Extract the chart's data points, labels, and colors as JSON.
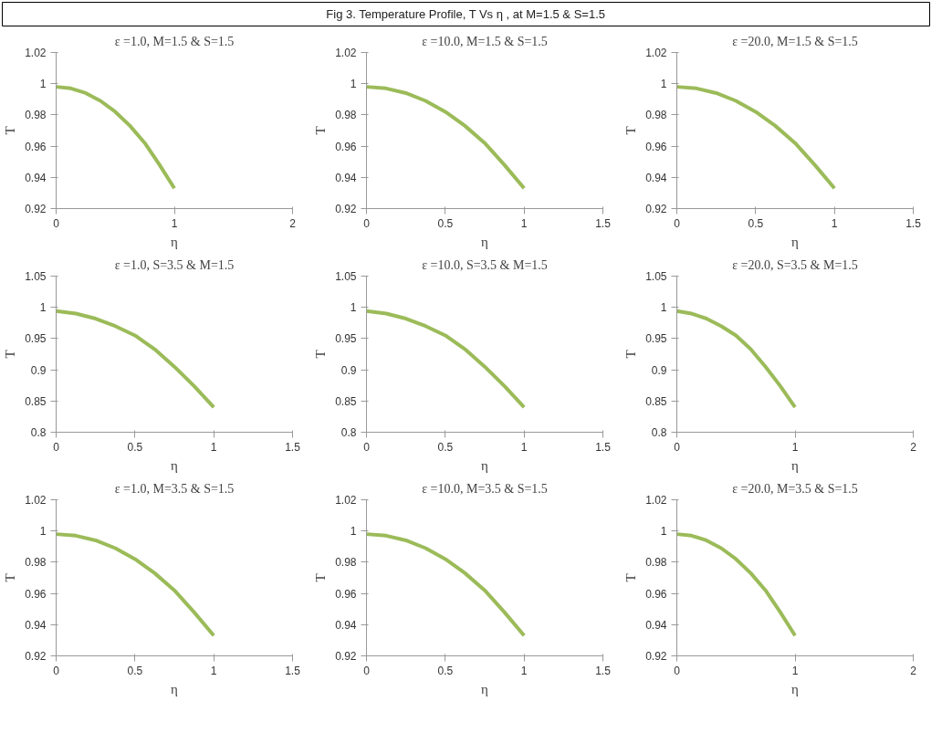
{
  "chart_data": [
    {
      "type": "other",
      "title": "Fig 3. Temperature Profile, T Vs η , at M=1.5 & S=1.5"
    },
    {
      "type": "line",
      "title": "ε =1.0, M=1.5 & S=1.5",
      "xlabel": "η",
      "ylabel": "T",
      "x": [
        0,
        0.125,
        0.25,
        0.375,
        0.5,
        0.625,
        0.75,
        0.875,
        1
      ],
      "series": [
        {
          "color": "#9bbb59",
          "values": [
            0.998,
            0.997,
            0.994,
            0.989,
            0.982,
            0.973,
            0.962,
            0.948,
            0.933
          ]
        }
      ],
      "xlim": [
        0,
        2
      ],
      "xticks": [
        0,
        1,
        2
      ],
      "ylim": [
        0.92,
        1.02
      ],
      "yticks": [
        0.92,
        0.94,
        0.96,
        0.98,
        1,
        1.02
      ],
      "line_style": "solid"
    },
    {
      "type": "line",
      "title": "ε =10.0, M=1.5 & S=1.5",
      "xlabel": "η",
      "ylabel": "T",
      "x": [
        0,
        0.125,
        0.25,
        0.375,
        0.5,
        0.625,
        0.75,
        0.875,
        1
      ],
      "series": [
        {
          "color": "#9bbb59",
          "values": [
            0.998,
            0.997,
            0.994,
            0.989,
            0.982,
            0.973,
            0.962,
            0.948,
            0.933
          ]
        }
      ],
      "xlim": [
        0,
        1.5
      ],
      "xticks": [
        0,
        0.5,
        1,
        1.5
      ],
      "ylim": [
        0.92,
        1.02
      ],
      "yticks": [
        0.92,
        0.94,
        0.96,
        0.98,
        1,
        1.02
      ],
      "line_style": "solid"
    },
    {
      "type": "line",
      "title": "ε =20.0, M=1.5 & S=1.5",
      "xlabel": "η",
      "ylabel": "T",
      "x": [
        0,
        0.125,
        0.25,
        0.375,
        0.5,
        0.625,
        0.75,
        0.875,
        1
      ],
      "series": [
        {
          "color": "#9bbb59",
          "values": [
            0.998,
            0.997,
            0.994,
            0.989,
            0.982,
            0.973,
            0.962,
            0.948,
            0.933
          ]
        }
      ],
      "xlim": [
        0,
        1.5
      ],
      "xticks": [
        0,
        0.5,
        1,
        1.5
      ],
      "ylim": [
        0.92,
        1.02
      ],
      "yticks": [
        0.92,
        0.94,
        0.96,
        0.98,
        1,
        1.02
      ],
      "line_style": "solid"
    },
    {
      "type": "line",
      "title": "ε =1.0, S=3.5 & M=1.5",
      "xlabel": "η",
      "ylabel": "T",
      "x": [
        0,
        0.125,
        0.25,
        0.375,
        0.5,
        0.625,
        0.75,
        0.875,
        1
      ],
      "series": [
        {
          "color": "#9bbb59",
          "values": [
            0.994,
            0.99,
            0.982,
            0.97,
            0.955,
            0.933,
            0.905,
            0.874,
            0.84
          ]
        }
      ],
      "xlim": [
        0,
        1.5
      ],
      "xticks": [
        0,
        0.5,
        1,
        1.5
      ],
      "ylim": [
        0.8,
        1.05
      ],
      "yticks": [
        0.8,
        0.85,
        0.9,
        0.95,
        1,
        1.05
      ],
      "line_style": "solid"
    },
    {
      "type": "line",
      "title": "ε =10.0, S=3.5 & M=1.5",
      "xlabel": "η",
      "ylabel": "T",
      "x": [
        0,
        0.125,
        0.25,
        0.375,
        0.5,
        0.625,
        0.75,
        0.875,
        1
      ],
      "series": [
        {
          "color": "#9bbb59",
          "values": [
            0.994,
            0.99,
            0.982,
            0.97,
            0.955,
            0.933,
            0.905,
            0.874,
            0.84
          ]
        }
      ],
      "xlim": [
        0,
        1.5
      ],
      "xticks": [
        0,
        0.5,
        1,
        1.5
      ],
      "ylim": [
        0.8,
        1.05
      ],
      "yticks": [
        0.8,
        0.85,
        0.9,
        0.95,
        1,
        1.05
      ],
      "line_style": "solid"
    },
    {
      "type": "line",
      "title": "ε =20.0, S=3.5 & M=1.5",
      "xlabel": "η",
      "ylabel": "T",
      "x": [
        0,
        0.125,
        0.25,
        0.375,
        0.5,
        0.625,
        0.75,
        0.875,
        1
      ],
      "series": [
        {
          "color": "#9bbb59",
          "values": [
            0.994,
            0.99,
            0.982,
            0.97,
            0.955,
            0.933,
            0.905,
            0.874,
            0.84
          ]
        }
      ],
      "xlim": [
        0,
        2
      ],
      "xticks": [
        0,
        1,
        2
      ],
      "ylim": [
        0.8,
        1.05
      ],
      "yticks": [
        0.8,
        0.85,
        0.9,
        0.95,
        1,
        1.05
      ],
      "line_style": "solid"
    },
    {
      "type": "line",
      "title": "ε =1.0, M=3.5 & S=1.5",
      "xlabel": "η",
      "ylabel": "T",
      "x": [
        0,
        0.125,
        0.25,
        0.375,
        0.5,
        0.625,
        0.75,
        0.875,
        1
      ],
      "series": [
        {
          "color": "#9bbb59",
          "values": [
            0.998,
            0.997,
            0.994,
            0.989,
            0.982,
            0.973,
            0.962,
            0.948,
            0.933
          ]
        }
      ],
      "xlim": [
        0,
        1.5
      ],
      "xticks": [
        0,
        0.5,
        1,
        1.5
      ],
      "ylim": [
        0.92,
        1.02
      ],
      "yticks": [
        0.92,
        0.94,
        0.96,
        0.98,
        1,
        1.02
      ],
      "line_style": "solid"
    },
    {
      "type": "line",
      "title": "ε =10.0, M=3.5 & S=1.5",
      "xlabel": "η",
      "ylabel": "T",
      "x": [
        0,
        0.125,
        0.25,
        0.375,
        0.5,
        0.625,
        0.75,
        0.875,
        1
      ],
      "series": [
        {
          "color": "#9bbb59",
          "values": [
            0.998,
            0.997,
            0.994,
            0.989,
            0.982,
            0.973,
            0.962,
            0.948,
            0.933
          ]
        }
      ],
      "xlim": [
        0,
        1.5
      ],
      "xticks": [
        0,
        0.5,
        1,
        1.5
      ],
      "ylim": [
        0.92,
        1.02
      ],
      "yticks": [
        0.92,
        0.94,
        0.96,
        0.98,
        1,
        1.02
      ],
      "line_style": "solid"
    },
    {
      "type": "line",
      "title": "ε =20.0, M=3.5 & S=1.5",
      "xlabel": "η",
      "ylabel": "T",
      "x": [
        0,
        0.125,
        0.25,
        0.375,
        0.5,
        0.625,
        0.75,
        0.875,
        1
      ],
      "series": [
        {
          "color": "#9bbb59",
          "values": [
            0.998,
            0.997,
            0.994,
            0.989,
            0.982,
            0.973,
            0.962,
            0.948,
            0.933
          ]
        }
      ],
      "xlim": [
        0,
        2
      ],
      "xticks": [
        0,
        1,
        2
      ],
      "ylim": [
        0.92,
        1.02
      ],
      "yticks": [
        0.92,
        0.94,
        0.96,
        0.98,
        1,
        1.02
      ],
      "line_style": "solid"
    }
  ]
}
